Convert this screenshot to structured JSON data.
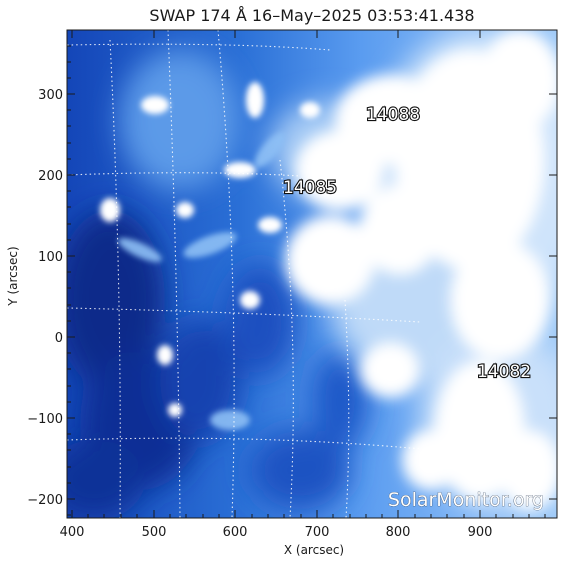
{
  "title": "SWAP 174 Å 16–May–2025 03:53:41.438",
  "x_axis_label": "X (arcsec)",
  "y_axis_label": "Y (arcsec)",
  "x_ticks": [
    "400",
    "500",
    "600",
    "700",
    "800",
    "900"
  ],
  "y_ticks": [
    "300",
    "200",
    "100",
    "0",
    "−100",
    "−200"
  ],
  "regions": [
    "14088",
    "14085",
    "14082"
  ],
  "watermark": "SolarMonitor.org",
  "colors": {
    "ink": "#1a1a1a",
    "sun_dark": "#0a2a8a",
    "sun_mid": "#2a6fd6",
    "sun_bright": "#ffffff"
  },
  "chart_data": {
    "type": "heatmap",
    "x_range": [
      395,
      995
    ],
    "y_range": [
      -220,
      380
    ],
    "x_ticks": [
      400,
      500,
      600,
      700,
      800,
      900
    ],
    "y_ticks": [
      300,
      200,
      100,
      0,
      -100,
      -200
    ],
    "grid": true,
    "regions": [
      {
        "label": "14088",
        "x": 800,
        "y": 275
      },
      {
        "label": "14085",
        "x": 715,
        "y": 183
      },
      {
        "label": "14082",
        "x": 935,
        "y": -42
      }
    ]
  }
}
